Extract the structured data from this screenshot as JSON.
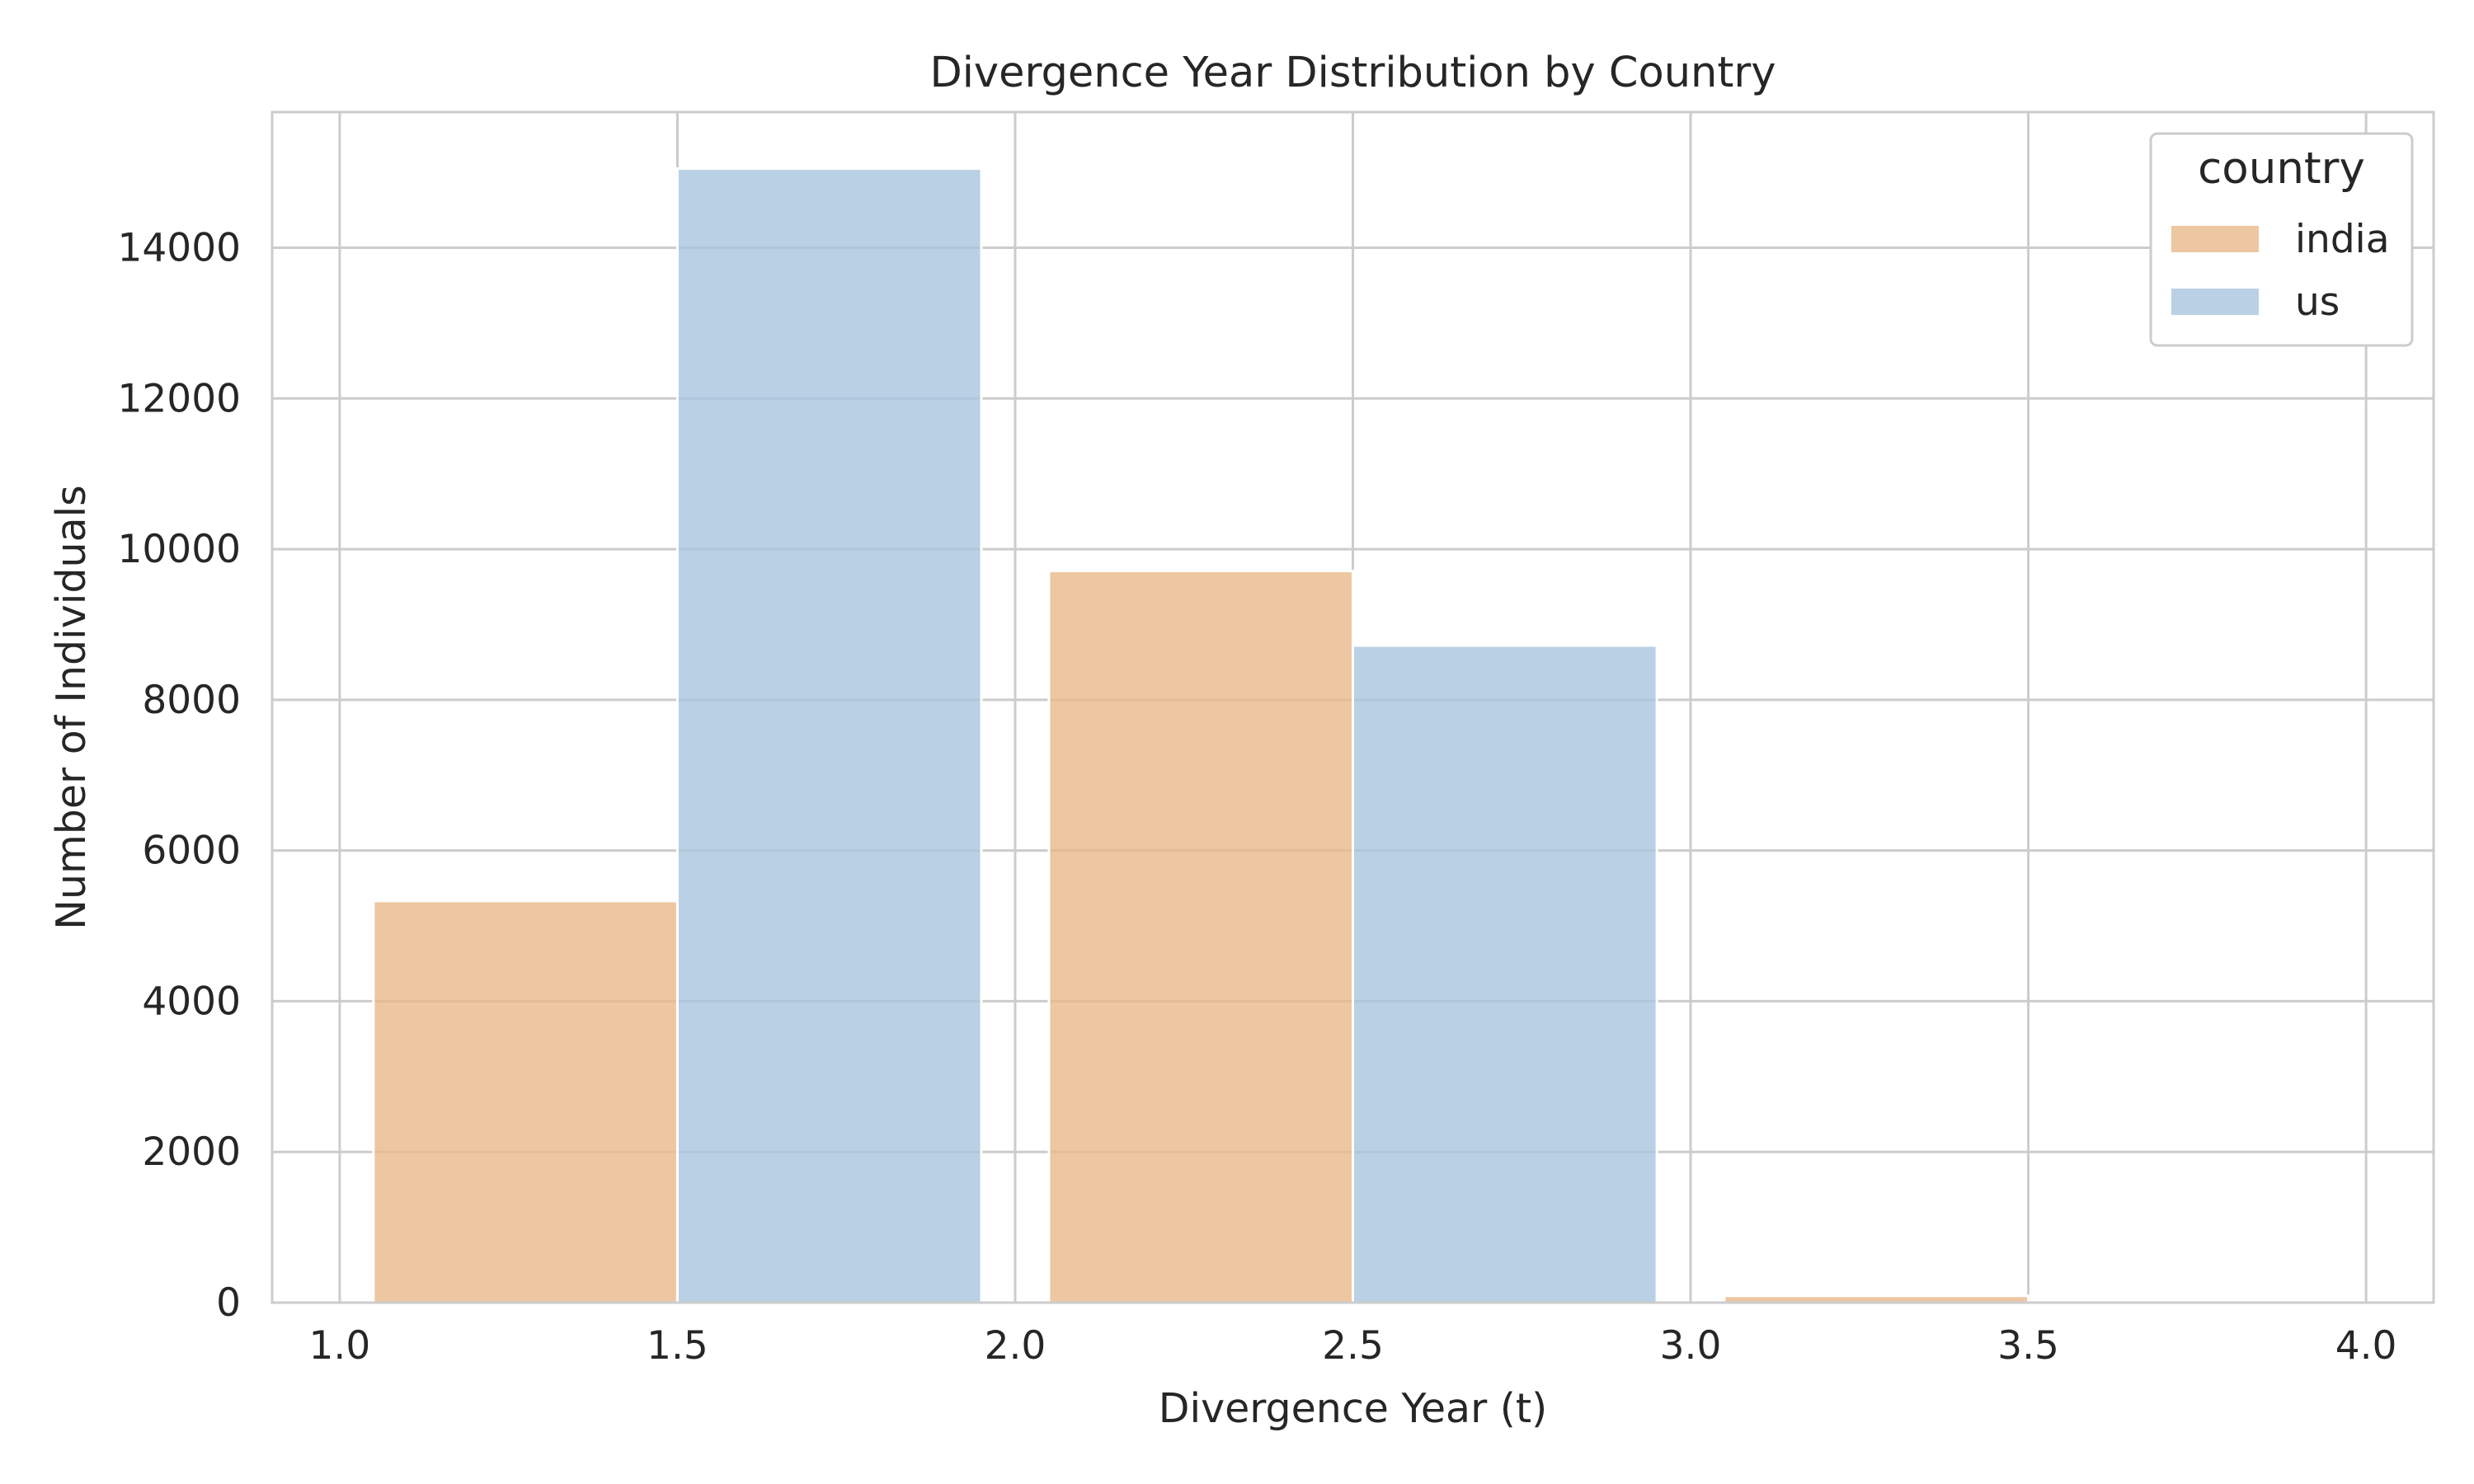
{
  "chart_data": {
    "type": "bar",
    "title": "Divergence Year Distribution by Country",
    "xlabel": "Divergence Year (t)",
    "ylabel": "Number of Individuals",
    "xlim": [
      0.9,
      4.1
    ],
    "ylim": [
      0,
      15800
    ],
    "xticks": [
      1.0,
      1.5,
      2.0,
      2.5,
      3.0,
      3.5,
      4.0
    ],
    "xtick_labels": [
      "1.0",
      "1.5",
      "2.0",
      "2.5",
      "3.0",
      "3.5",
      "4.0"
    ],
    "yticks": [
      0,
      2000,
      4000,
      6000,
      8000,
      10000,
      12000,
      14000
    ],
    "ytick_labels": [
      "0",
      "2000",
      "4000",
      "6000",
      "8000",
      "10000",
      "12000",
      "14000"
    ],
    "grid": true,
    "legend": {
      "title": "country",
      "position": "upper-right"
    },
    "series": [
      {
        "name": "india",
        "color": "#e8b98a",
        "bars": [
          {
            "x0": 1.05,
            "x1": 1.5,
            "value": 5330
          },
          {
            "x0": 2.05,
            "x1": 2.5,
            "value": 9710
          },
          {
            "x0": 3.05,
            "x1": 3.5,
            "value": 90
          }
        ]
      },
      {
        "name": "us",
        "color": "#a9c4de",
        "bars": [
          {
            "x0": 1.5,
            "x1": 1.95,
            "value": 15050
          },
          {
            "x0": 2.5,
            "x1": 2.95,
            "value": 8720
          },
          {
            "x0": 3.5,
            "x1": 3.95,
            "value": 0
          }
        ]
      }
    ]
  }
}
